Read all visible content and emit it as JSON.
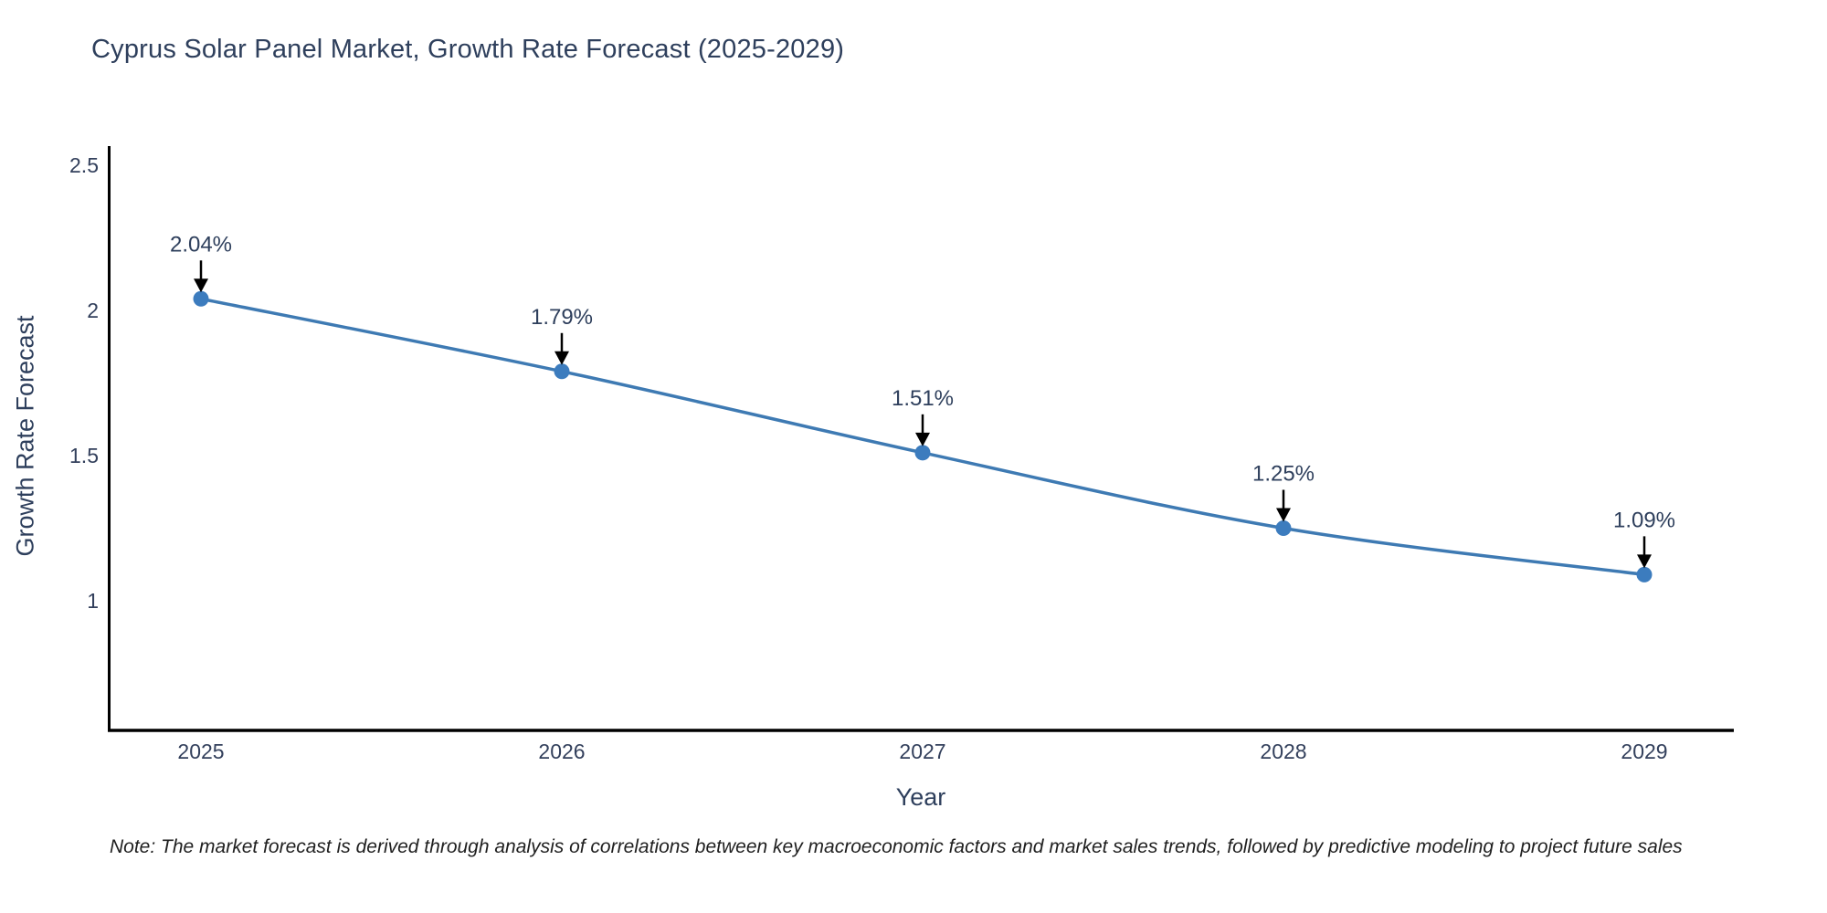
{
  "chart_data": {
    "type": "line",
    "title": "Cyprus Solar Panel Market, Growth Rate Forecast (2025-2029)",
    "xlabel": "Year",
    "ylabel": "Growth Rate Forecast",
    "note": "Note: The market forecast is derived through analysis of correlations between key macroeconomic factors and market sales trends, followed by predictive modeling to project future sales",
    "categories": [
      "2025",
      "2026",
      "2027",
      "2028",
      "2029"
    ],
    "series": [
      {
        "name": "Growth Rate Forecast",
        "values": [
          2.04,
          1.79,
          1.51,
          1.25,
          1.09
        ]
      }
    ],
    "point_labels": [
      "2.04%",
      "1.79%",
      "1.51%",
      "1.25%",
      "1.09%"
    ],
    "yticks": [
      1,
      1.5,
      2,
      2.5
    ],
    "ytick_labels": [
      "1",
      "1.5",
      "2",
      "2.5"
    ],
    "ylim": [
      0.55,
      2.56
    ],
    "grid": false,
    "legend_position": "none",
    "line_shape": "spline",
    "colors": {
      "line": "#3e7ab3",
      "marker": "#3c7cbe",
      "arrow": "#000000",
      "axis": "#000000",
      "label_text": "#2e3f5c",
      "tick_text": "#33405c",
      "note_text": "#1f1f1f",
      "background": "#ffffff"
    }
  }
}
